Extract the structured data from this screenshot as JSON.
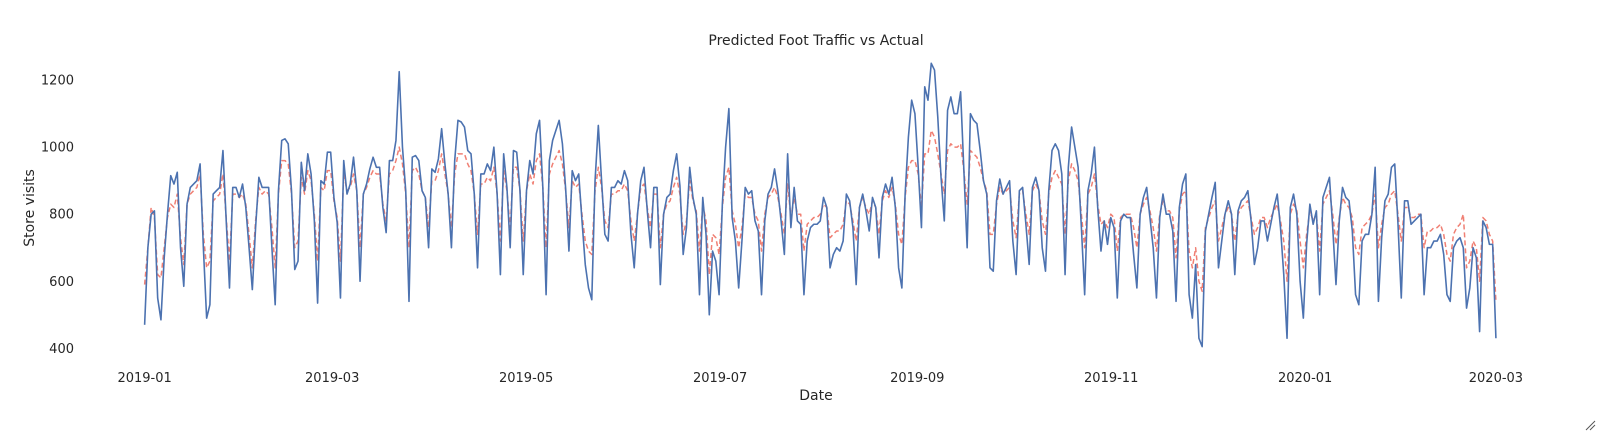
{
  "chart_data": {
    "type": "line",
    "title": "Predicted Foot Traffic vs Actual",
    "xlabel": "Date",
    "ylabel": "Store visits",
    "x_ticks": [
      "2019-01",
      "2019-03",
      "2019-05",
      "2019-07",
      "2019-09",
      "2019-11",
      "2020-01",
      "2020-03"
    ],
    "y_ticks": [
      "400",
      "600",
      "800",
      "1000",
      "1200"
    ],
    "ylim": [
      380,
      1260
    ],
    "xlim": [
      "2018-12-23",
      "2020-03-07"
    ],
    "x_start": "2019-01-01",
    "x_end": "2020-03-01",
    "grid": false,
    "series": [
      {
        "style": "solid",
        "color": "#4c72b0",
        "values": [
          470,
          700,
          800,
          810,
          550,
          485,
          670,
          800,
          915,
          890,
          925,
          700,
          585,
          830,
          880,
          890,
          900,
          950,
          700,
          490,
          530,
          860,
          870,
          880,
          990,
          780,
          580,
          880,
          880,
          850,
          890,
          820,
          700,
          575,
          760,
          910,
          880,
          880,
          880,
          700,
          530,
          870,
          1020,
          1025,
          1010,
          870,
          635,
          660,
          955,
          870,
          980,
          920,
          780,
          535,
          900,
          890,
          985,
          985,
          850,
          775,
          550,
          960,
          860,
          890,
          970,
          870,
          600,
          860,
          890,
          935,
          970,
          940,
          940,
          820,
          745,
          960,
          960,
          1020,
          1225,
          1000,
          870,
          540,
          970,
          975,
          960,
          870,
          850,
          700,
          935,
          925,
          965,
          1055,
          950,
          860,
          700,
          960,
          1080,
          1075,
          1060,
          990,
          980,
          860,
          640,
          920,
          920,
          950,
          930,
          1000,
          860,
          620,
          980,
          880,
          700,
          990,
          985,
          870,
          620,
          870,
          960,
          920,
          1040,
          1080,
          880,
          560,
          960,
          1020,
          1050,
          1080,
          1010,
          875,
          690,
          930,
          900,
          920,
          780,
          650,
          580,
          545,
          900,
          1065,
          900,
          740,
          720,
          880,
          880,
          900,
          890,
          930,
          900,
          740,
          640,
          800,
          900,
          940,
          810,
          700,
          880,
          880,
          590,
          800,
          850,
          860,
          930,
          980,
          885,
          680,
          760,
          940,
          850,
          800,
          560,
          850,
          740,
          500,
          690,
          660,
          560,
          830,
          1000,
          1115,
          790,
          720,
          580,
          720,
          880,
          860,
          870,
          780,
          750,
          560,
          780,
          860,
          880,
          935,
          870,
          780,
          680,
          980,
          760,
          880,
          780,
          770,
          560,
          720,
          760,
          770,
          770,
          780,
          850,
          820,
          640,
          680,
          700,
          690,
          720,
          860,
          840,
          760,
          590,
          820,
          860,
          810,
          750,
          850,
          820,
          670,
          850,
          890,
          860,
          910,
          820,
          640,
          580,
          860,
          1030,
          1140,
          1100,
          940,
          760,
          1180,
          1140,
          1250,
          1230,
          1090,
          910,
          780,
          1110,
          1150,
          1100,
          1100,
          1165,
          930,
          700,
          1100,
          1080,
          1070,
          990,
          900,
          860,
          640,
          630,
          840,
          905,
          860,
          880,
          900,
          720,
          620,
          870,
          880,
          770,
          650,
          880,
          910,
          870,
          700,
          630,
          870,
          990,
          1010,
          990,
          920,
          620,
          940,
          1060,
          1000,
          940,
          760,
          560,
          870,
          920,
          1000,
          820,
          690,
          780,
          710,
          790,
          760,
          550,
          780,
          800,
          790,
          790,
          680,
          580,
          800,
          850,
          880,
          790,
          700,
          550,
          790,
          860,
          800,
          800,
          750,
          540,
          820,
          890,
          920,
          560,
          490,
          650,
          430,
          405,
          750,
          800,
          850,
          895,
          640,
          720,
          800,
          840,
          800,
          620,
          810,
          840,
          850,
          870,
          780,
          650,
          700,
          780,
          780,
          720,
          770,
          820,
          860,
          760,
          620,
          430,
          820,
          860,
          800,
          600,
          490,
          710,
          830,
          770,
          810,
          560,
          850,
          880,
          910,
          760,
          590,
          780,
          880,
          850,
          840,
          750,
          560,
          530,
          720,
          740,
          740,
          800,
          940,
          540,
          730,
          840,
          860,
          940,
          950,
          770,
          550,
          840,
          840,
          770,
          780,
          790,
          800,
          560,
          700,
          700,
          720,
          720,
          740,
          680,
          560,
          540,
          700,
          720,
          730,
          700,
          520,
          580,
          700,
          670,
          450,
          780,
          760,
          710,
          710,
          430
        ]
      },
      {
        "style": "dashed",
        "color": "#f07f73",
        "values": [
          590,
          700,
          820,
          790,
          620,
          610,
          700,
          790,
          830,
          820,
          860,
          730,
          650,
          830,
          860,
          870,
          880,
          920,
          740,
          640,
          660,
          840,
          850,
          860,
          920,
          790,
          660,
          860,
          860,
          850,
          860,
          830,
          740,
          640,
          780,
          880,
          860,
          870,
          860,
          760,
          640,
          860,
          960,
          960,
          950,
          860,
          700,
          720,
          910,
          860,
          930,
          900,
          800,
          660,
          880,
          870,
          930,
          930,
          840,
          790,
          660,
          920,
          870,
          880,
          920,
          870,
          700,
          860,
          880,
          910,
          930,
          920,
          920,
          830,
          780,
          920,
          930,
          960,
          1000,
          950,
          860,
          700,
          930,
          940,
          920,
          870,
          850,
          760,
          900,
          900,
          930,
          980,
          920,
          860,
          760,
          920,
          980,
          980,
          980,
          950,
          930,
          860,
          740,
          890,
          890,
          910,
          900,
          940,
          860,
          720,
          930,
          870,
          760,
          940,
          940,
          870,
          720,
          870,
          920,
          890,
          960,
          980,
          880,
          700,
          920,
          950,
          970,
          990,
          950,
          870,
          760,
          900,
          880,
          890,
          800,
          720,
          690,
          680,
          870,
          940,
          880,
          780,
          760,
          860,
          860,
          870,
          870,
          890,
          870,
          780,
          720,
          800,
          880,
          890,
          820,
          760,
          860,
          860,
          700,
          800,
          830,
          840,
          880,
          910,
          860,
          740,
          780,
          900,
          840,
          810,
          690,
          830,
          780,
          620,
          740,
          730,
          680,
          820,
          910,
          940,
          810,
          770,
          700,
          760,
          860,
          850,
          850,
          800,
          780,
          690,
          800,
          850,
          860,
          880,
          850,
          800,
          740,
          890,
          790,
          850,
          800,
          800,
          690,
          770,
          780,
          790,
          790,
          800,
          830,
          820,
          730,
          740,
          750,
          750,
          770,
          840,
          830,
          780,
          720,
          820,
          850,
          820,
          800,
          840,
          820,
          740,
          840,
          870,
          850,
          880,
          830,
          740,
          710,
          850,
          940,
          960,
          960,
          920,
          820,
          980,
          980,
          1050,
          1030,
          980,
          920,
          860,
          990,
          1010,
          1000,
          1000,
          1010,
          930,
          830,
          990,
          980,
          970,
          940,
          900,
          870,
          740,
          740,
          830,
          880,
          860,
          870,
          880,
          780,
          730,
          860,
          870,
          800,
          740,
          870,
          890,
          870,
          780,
          740,
          860,
          910,
          930,
          910,
          890,
          740,
          900,
          950,
          930,
          900,
          800,
          700,
          860,
          880,
          920,
          830,
          770,
          780,
          760,
          800,
          790,
          690,
          790,
          800,
          800,
          800,
          760,
          700,
          800,
          830,
          850,
          810,
          760,
          690,
          800,
          840,
          810,
          810,
          790,
          670,
          810,
          860,
          870,
          690,
          640,
          700,
          600,
          570,
          760,
          790,
          820,
          840,
          720,
          760,
          800,
          820,
          800,
          720,
          800,
          820,
          830,
          840,
          790,
          740,
          760,
          790,
          790,
          760,
          790,
          810,
          830,
          780,
          720,
          600,
          800,
          830,
          810,
          720,
          640,
          740,
          810,
          780,
          800,
          690,
          830,
          850,
          870,
          800,
          710,
          790,
          850,
          830,
          820,
          790,
          700,
          680,
          760,
          770,
          780,
          800,
          860,
          700,
          770,
          820,
          830,
          860,
          870,
          800,
          720,
          820,
          820,
          790,
          790,
          800,
          800,
          700,
          750,
          750,
          760,
          760,
          770,
          740,
          680,
          660,
          740,
          760,
          770,
          800,
          640,
          660,
          720,
          700,
          600,
          790,
          780,
          740,
          720,
          540
        ]
      }
    ]
  },
  "ui": {
    "resize_grip_icon": "resize-grip-icon"
  }
}
